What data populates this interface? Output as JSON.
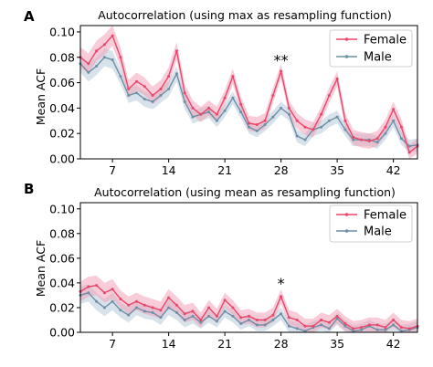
{
  "chart_data": [
    {
      "panel_label": "A",
      "type": "line",
      "title": "Autocorrelation (using max as resampling function)",
      "xlabel": "",
      "ylabel": "Mean ACF",
      "xlim": [
        3,
        45
      ],
      "ylim": [
        0,
        0.105
      ],
      "xticks": [
        7,
        14,
        21,
        28,
        35,
        42
      ],
      "yticks": [
        0.0,
        0.02,
        0.04,
        0.06,
        0.08,
        0.1
      ],
      "ytick_labels": [
        "0.00",
        "0.02",
        "0.04",
        "0.06",
        "0.08",
        "0.10"
      ],
      "legend_position": "top-right",
      "annotation": {
        "text": "**",
        "x": 28,
        "y": 0.078
      },
      "x": [
        3,
        4,
        5,
        6,
        7,
        8,
        9,
        10,
        11,
        12,
        13,
        14,
        15,
        16,
        17,
        18,
        19,
        20,
        21,
        22,
        23,
        24,
        25,
        26,
        27,
        28,
        29,
        30,
        31,
        32,
        33,
        34,
        35,
        36,
        37,
        38,
        39,
        40,
        41,
        42,
        43,
        44,
        45
      ],
      "series": [
        {
          "name": "Female",
          "color": "#e8476b",
          "band_color": "#f2a3b8",
          "values": [
            0.08,
            0.075,
            0.085,
            0.09,
            0.097,
            0.08,
            0.055,
            0.061,
            0.057,
            0.05,
            0.055,
            0.065,
            0.085,
            0.052,
            0.04,
            0.035,
            0.04,
            0.035,
            0.048,
            0.065,
            0.043,
            0.028,
            0.027,
            0.03,
            0.05,
            0.069,
            0.04,
            0.03,
            0.025,
            0.023,
            0.035,
            0.05,
            0.063,
            0.03,
            0.017,
            0.015,
            0.014,
            0.016,
            0.025,
            0.039,
            0.025,
            0.005,
            0.01
          ],
          "ci_half": [
            0.008,
            0.008,
            0.008,
            0.008,
            0.008,
            0.008,
            0.007,
            0.007,
            0.007,
            0.007,
            0.007,
            0.007,
            0.007,
            0.007,
            0.006,
            0.006,
            0.006,
            0.006,
            0.006,
            0.006,
            0.006,
            0.006,
            0.006,
            0.006,
            0.006,
            0.006,
            0.006,
            0.006,
            0.006,
            0.006,
            0.006,
            0.006,
            0.006,
            0.006,
            0.006,
            0.006,
            0.006,
            0.006,
            0.006,
            0.006,
            0.006,
            0.006,
            0.006
          ]
        },
        {
          "name": "Male",
          "color": "#6e8fa6",
          "band_color": "#b7cad8",
          "values": [
            0.075,
            0.068,
            0.073,
            0.08,
            0.078,
            0.065,
            0.05,
            0.052,
            0.047,
            0.045,
            0.05,
            0.055,
            0.067,
            0.045,
            0.033,
            0.035,
            0.037,
            0.03,
            0.038,
            0.048,
            0.037,
            0.025,
            0.022,
            0.027,
            0.033,
            0.04,
            0.035,
            0.018,
            0.015,
            0.023,
            0.025,
            0.03,
            0.033,
            0.023,
            0.015,
            0.015,
            0.015,
            0.013,
            0.02,
            0.03,
            0.016,
            0.01,
            0.011
          ],
          "ci_half": [
            0.007,
            0.007,
            0.007,
            0.007,
            0.007,
            0.006,
            0.006,
            0.006,
            0.006,
            0.006,
            0.006,
            0.006,
            0.006,
            0.006,
            0.005,
            0.005,
            0.005,
            0.005,
            0.005,
            0.005,
            0.005,
            0.005,
            0.005,
            0.005,
            0.005,
            0.005,
            0.005,
            0.005,
            0.005,
            0.005,
            0.005,
            0.005,
            0.005,
            0.005,
            0.005,
            0.005,
            0.005,
            0.005,
            0.005,
            0.005,
            0.005,
            0.005,
            0.005
          ]
        }
      ]
    },
    {
      "panel_label": "B",
      "type": "line",
      "title": "Autocorrelation (using mean as resampling function)",
      "xlabel": "",
      "ylabel": "Mean ACF",
      "xlim": [
        3,
        45
      ],
      "ylim": [
        0,
        0.105
      ],
      "xticks": [
        7,
        14,
        21,
        28,
        35,
        42
      ],
      "yticks": [
        0.0,
        0.02,
        0.04,
        0.06,
        0.08,
        0.1
      ],
      "ytick_labels": [
        "0.00",
        "0.02",
        "0.04",
        "0.06",
        "0.08",
        "0.10"
      ],
      "legend_position": "top-right",
      "annotation": {
        "text": "*",
        "x": 28,
        "y": 0.04
      },
      "x": [
        3,
        4,
        5,
        6,
        7,
        8,
        9,
        10,
        11,
        12,
        13,
        14,
        15,
        16,
        17,
        18,
        19,
        20,
        21,
        22,
        23,
        24,
        25,
        26,
        27,
        28,
        29,
        30,
        31,
        32,
        33,
        34,
        35,
        36,
        37,
        38,
        39,
        40,
        41,
        42,
        43,
        44,
        45
      ],
      "series": [
        {
          "name": "Female",
          "color": "#e8476b",
          "band_color": "#f2a3b8",
          "values": [
            0.033,
            0.037,
            0.038,
            0.032,
            0.035,
            0.027,
            0.022,
            0.025,
            0.022,
            0.02,
            0.018,
            0.028,
            0.022,
            0.015,
            0.017,
            0.01,
            0.02,
            0.013,
            0.026,
            0.02,
            0.012,
            0.013,
            0.01,
            0.01,
            0.014,
            0.029,
            0.012,
            0.01,
            0.005,
            0.005,
            0.01,
            0.008,
            0.013,
            0.007,
            0.003,
            0.004,
            0.006,
            0.006,
            0.004,
            0.01,
            0.004,
            0.003,
            0.005
          ],
          "ci_half": [
            0.008,
            0.008,
            0.008,
            0.008,
            0.008,
            0.007,
            0.007,
            0.007,
            0.007,
            0.007,
            0.007,
            0.007,
            0.007,
            0.007,
            0.007,
            0.006,
            0.006,
            0.006,
            0.006,
            0.006,
            0.006,
            0.006,
            0.006,
            0.006,
            0.006,
            0.006,
            0.006,
            0.006,
            0.006,
            0.006,
            0.006,
            0.006,
            0.006,
            0.006,
            0.006,
            0.006,
            0.006,
            0.006,
            0.006,
            0.006,
            0.006,
            0.006,
            0.006
          ]
        },
        {
          "name": "Male",
          "color": "#6e8fa6",
          "band_color": "#b7cad8",
          "values": [
            0.03,
            0.032,
            0.025,
            0.02,
            0.025,
            0.018,
            0.014,
            0.02,
            0.017,
            0.016,
            0.012,
            0.02,
            0.016,
            0.01,
            0.013,
            0.008,
            0.013,
            0.009,
            0.017,
            0.013,
            0.007,
            0.01,
            0.006,
            0.006,
            0.01,
            0.015,
            0.005,
            0.003,
            0.001,
            0.004,
            0.006,
            0.003,
            0.011,
            0.005,
            0.001,
            0.002,
            0.005,
            0.002,
            0.002,
            0.006,
            0.001,
            0.002,
            0.004
          ],
          "ci_half": [
            0.007,
            0.007,
            0.007,
            0.007,
            0.007,
            0.006,
            0.006,
            0.006,
            0.006,
            0.006,
            0.006,
            0.006,
            0.006,
            0.006,
            0.006,
            0.005,
            0.005,
            0.005,
            0.005,
            0.005,
            0.005,
            0.005,
            0.005,
            0.005,
            0.005,
            0.005,
            0.005,
            0.005,
            0.005,
            0.005,
            0.005,
            0.005,
            0.005,
            0.005,
            0.005,
            0.005,
            0.005,
            0.005,
            0.005,
            0.005,
            0.005,
            0.005,
            0.005
          ]
        }
      ]
    }
  ]
}
